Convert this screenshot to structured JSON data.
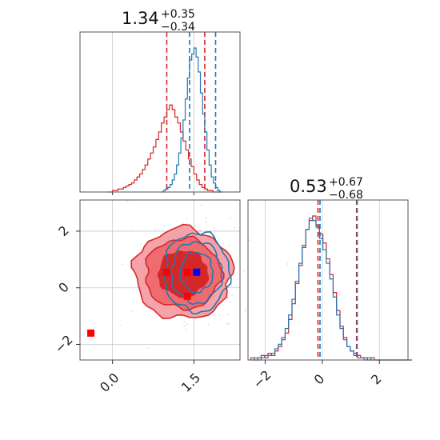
{
  "chart_data": {
    "type": "corner",
    "colors": {
      "red": "#d62728",
      "blue": "#1f77b4",
      "marker_red": "#ff0000",
      "marker_blue": "#0000ff"
    },
    "panels": [
      {
        "id": "param1-hist",
        "type": "histogram",
        "title": {
          "value": "1.34",
          "plus": "+0.35",
          "minus": "−0.34"
        },
        "xlim": [
          -0.6,
          2.35
        ],
        "series": [
          {
            "color": "red",
            "quantiles": [
              1.0,
              1.7
            ],
            "hist": {
              "x0": -0.1,
              "dx": 0.05,
              "h": [
                0,
                0,
                1,
                1,
                2,
                2,
                3,
                4,
                5,
                6,
                8,
                10,
                12,
                15,
                18,
                22,
                26,
                30,
                35,
                40,
                46,
                50,
                55,
                58,
                55,
                50,
                46,
                40,
                34,
                28,
                22,
                17,
                12,
                8,
                5,
                3,
                2,
                1,
                1,
                0,
                0,
                0
              ]
            }
          },
          {
            "color": "blue",
            "quantiles": [
              1.42,
              1.9
            ],
            "hist": {
              "x0": 0.9,
              "dx": 0.04,
              "h": [
                0,
                1,
                2,
                3,
                5,
                8,
                12,
                18,
                26,
                36,
                48,
                62,
                76,
                88,
                92,
                96,
                90,
                80,
                66,
                52,
                40,
                28,
                18,
                10,
                6,
                3,
                1,
                0
              ]
            }
          }
        ]
      },
      {
        "id": "param2-hist",
        "type": "histogram",
        "title": {
          "value": "0.53",
          "plus": "+0.67",
          "minus": "−0.68"
        },
        "xlim": [
          -2.6,
          3.0
        ],
        "xticks": [
          -2,
          0,
          2
        ],
        "xticklabels": [
          "−2",
          "0",
          "2"
        ],
        "series": [
          {
            "color": "red",
            "quantiles": [
              -0.15,
              1.2
            ],
            "hist": {
              "x0": -2.5,
              "dx": 0.12,
              "h": [
                1,
                0,
                1,
                2,
                1,
                3,
                2,
                4,
                6,
                9,
                12,
                18,
                25,
                34,
                42,
                50,
                58,
                62,
                64,
                60,
                56,
                52,
                45,
                38,
                30,
                22,
                15,
                10,
                6,
                4,
                3,
                2,
                1,
                1,
                0,
                1,
                0,
                0,
                0,
                0,
                0,
                0,
                0,
                0,
                0,
                0,
                0
              ]
            }
          },
          {
            "color": "blue",
            "quantiles": [
              -0.08,
              1.22
            ],
            "hist": {
              "x0": -2.5,
              "dx": 0.12,
              "h": [
                0,
                1,
                0,
                1,
                2,
                2,
                3,
                5,
                7,
                10,
                14,
                20,
                27,
                35,
                43,
                51,
                58,
                63,
                62,
                59,
                54,
                49,
                43,
                36,
                28,
                20,
                14,
                9,
                6,
                4,
                2,
                1,
                1,
                0,
                1,
                0,
                0,
                0,
                0,
                0,
                0,
                0,
                0,
                0,
                0,
                0,
                0
              ]
            }
          }
        ]
      },
      {
        "id": "param1-param2-2d",
        "type": "contour",
        "xlim": [
          -0.6,
          2.35
        ],
        "ylim": [
          -2.55,
          3.1
        ],
        "xticks": [
          0.0,
          1.5
        ],
        "xticklabels": [
          "0.0",
          "1.5"
        ],
        "yticks": [
          -2,
          0,
          2
        ],
        "yticklabels": [
          "−2",
          "0",
          "2"
        ],
        "series": [
          {
            "color": "red",
            "center": [
              1.3,
              0.5
            ],
            "sigmas": [
              0.45,
              0.8
            ],
            "filled": true
          },
          {
            "color": "blue",
            "center": [
              1.55,
              0.55
            ],
            "sigmas": [
              0.3,
              0.7
            ],
            "filled": false
          }
        ],
        "markers": [
          {
            "color": "marker_red",
            "x": 1.0,
            "y": 0.55
          },
          {
            "color": "marker_red",
            "x": 1.38,
            "y": 0.55
          },
          {
            "color": "marker_red",
            "x": 1.38,
            "y": -0.3
          },
          {
            "color": "marker_blue",
            "x": 1.55,
            "y": 0.55
          },
          {
            "color": "marker_red",
            "x": -0.4,
            "y": -1.6
          }
        ]
      }
    ]
  }
}
